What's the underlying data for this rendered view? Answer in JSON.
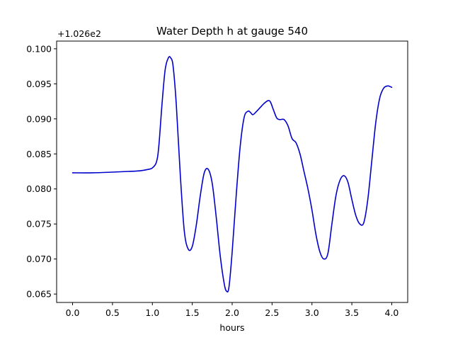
{
  "chart_data": {
    "type": "line",
    "title": "Water Depth h at gauge 540",
    "xlabel": "hours",
    "ylabel": "",
    "y_offset_label": "+1.026e2",
    "xlim": [
      -0.2,
      4.2
    ],
    "ylim": [
      0.0638,
      0.1011
    ],
    "x_ticks": [
      0.0,
      0.5,
      1.0,
      1.5,
      2.0,
      2.5,
      3.0,
      3.5,
      4.0
    ],
    "x_tick_labels": [
      "0.0",
      "0.5",
      "1.0",
      "1.5",
      "2.0",
      "2.5",
      "3.0",
      "3.5",
      "4.0"
    ],
    "y_ticks": [
      0.065,
      0.07,
      0.075,
      0.08,
      0.085,
      0.09,
      0.095,
      0.1
    ],
    "y_tick_labels": [
      "0.065",
      "0.070",
      "0.075",
      "0.080",
      "0.085",
      "0.090",
      "0.095",
      "0.100"
    ],
    "grid": false,
    "series": [
      {
        "name": "",
        "color": "#0000cc",
        "x": [
          0.0,
          0.25,
          0.5,
          0.7,
          0.85,
          0.95,
          1.0,
          1.05,
          1.08,
          1.12,
          1.16,
          1.2,
          1.23,
          1.26,
          1.3,
          1.35,
          1.4,
          1.45,
          1.5,
          1.55,
          1.6,
          1.65,
          1.7,
          1.75,
          1.8,
          1.85,
          1.9,
          1.93,
          1.96,
          2.0,
          2.05,
          2.1,
          2.15,
          2.2,
          2.23,
          2.26,
          2.3,
          2.35,
          2.4,
          2.45,
          2.48,
          2.52,
          2.56,
          2.6,
          2.65,
          2.7,
          2.75,
          2.8,
          2.85,
          2.9,
          2.95,
          3.0,
          3.05,
          3.1,
          3.15,
          3.2,
          3.25,
          3.3,
          3.35,
          3.4,
          3.45,
          3.5,
          3.55,
          3.6,
          3.65,
          3.7,
          3.75,
          3.8,
          3.85,
          3.9,
          3.95,
          3.98,
          4.0
        ],
        "y": [
          0.0823,
          0.0823,
          0.0824,
          0.0825,
          0.0826,
          0.0828,
          0.083,
          0.0838,
          0.086,
          0.092,
          0.097,
          0.0987,
          0.0987,
          0.0975,
          0.092,
          0.082,
          0.074,
          0.0714,
          0.0718,
          0.0748,
          0.079,
          0.0823,
          0.0828,
          0.0808,
          0.076,
          0.0705,
          0.0665,
          0.0654,
          0.066,
          0.071,
          0.079,
          0.086,
          0.0902,
          0.0911,
          0.0909,
          0.0906,
          0.091,
          0.0916,
          0.0922,
          0.0926,
          0.0924,
          0.0912,
          0.0901,
          0.0899,
          0.0899,
          0.089,
          0.0872,
          0.0866,
          0.085,
          0.0825,
          0.08,
          0.077,
          0.0735,
          0.071,
          0.07,
          0.0708,
          0.075,
          0.079,
          0.0812,
          0.0819,
          0.081,
          0.0785,
          0.0762,
          0.075,
          0.0752,
          0.0785,
          0.084,
          0.0895,
          0.093,
          0.0944,
          0.0947,
          0.0946,
          0.0945
        ]
      }
    ]
  }
}
